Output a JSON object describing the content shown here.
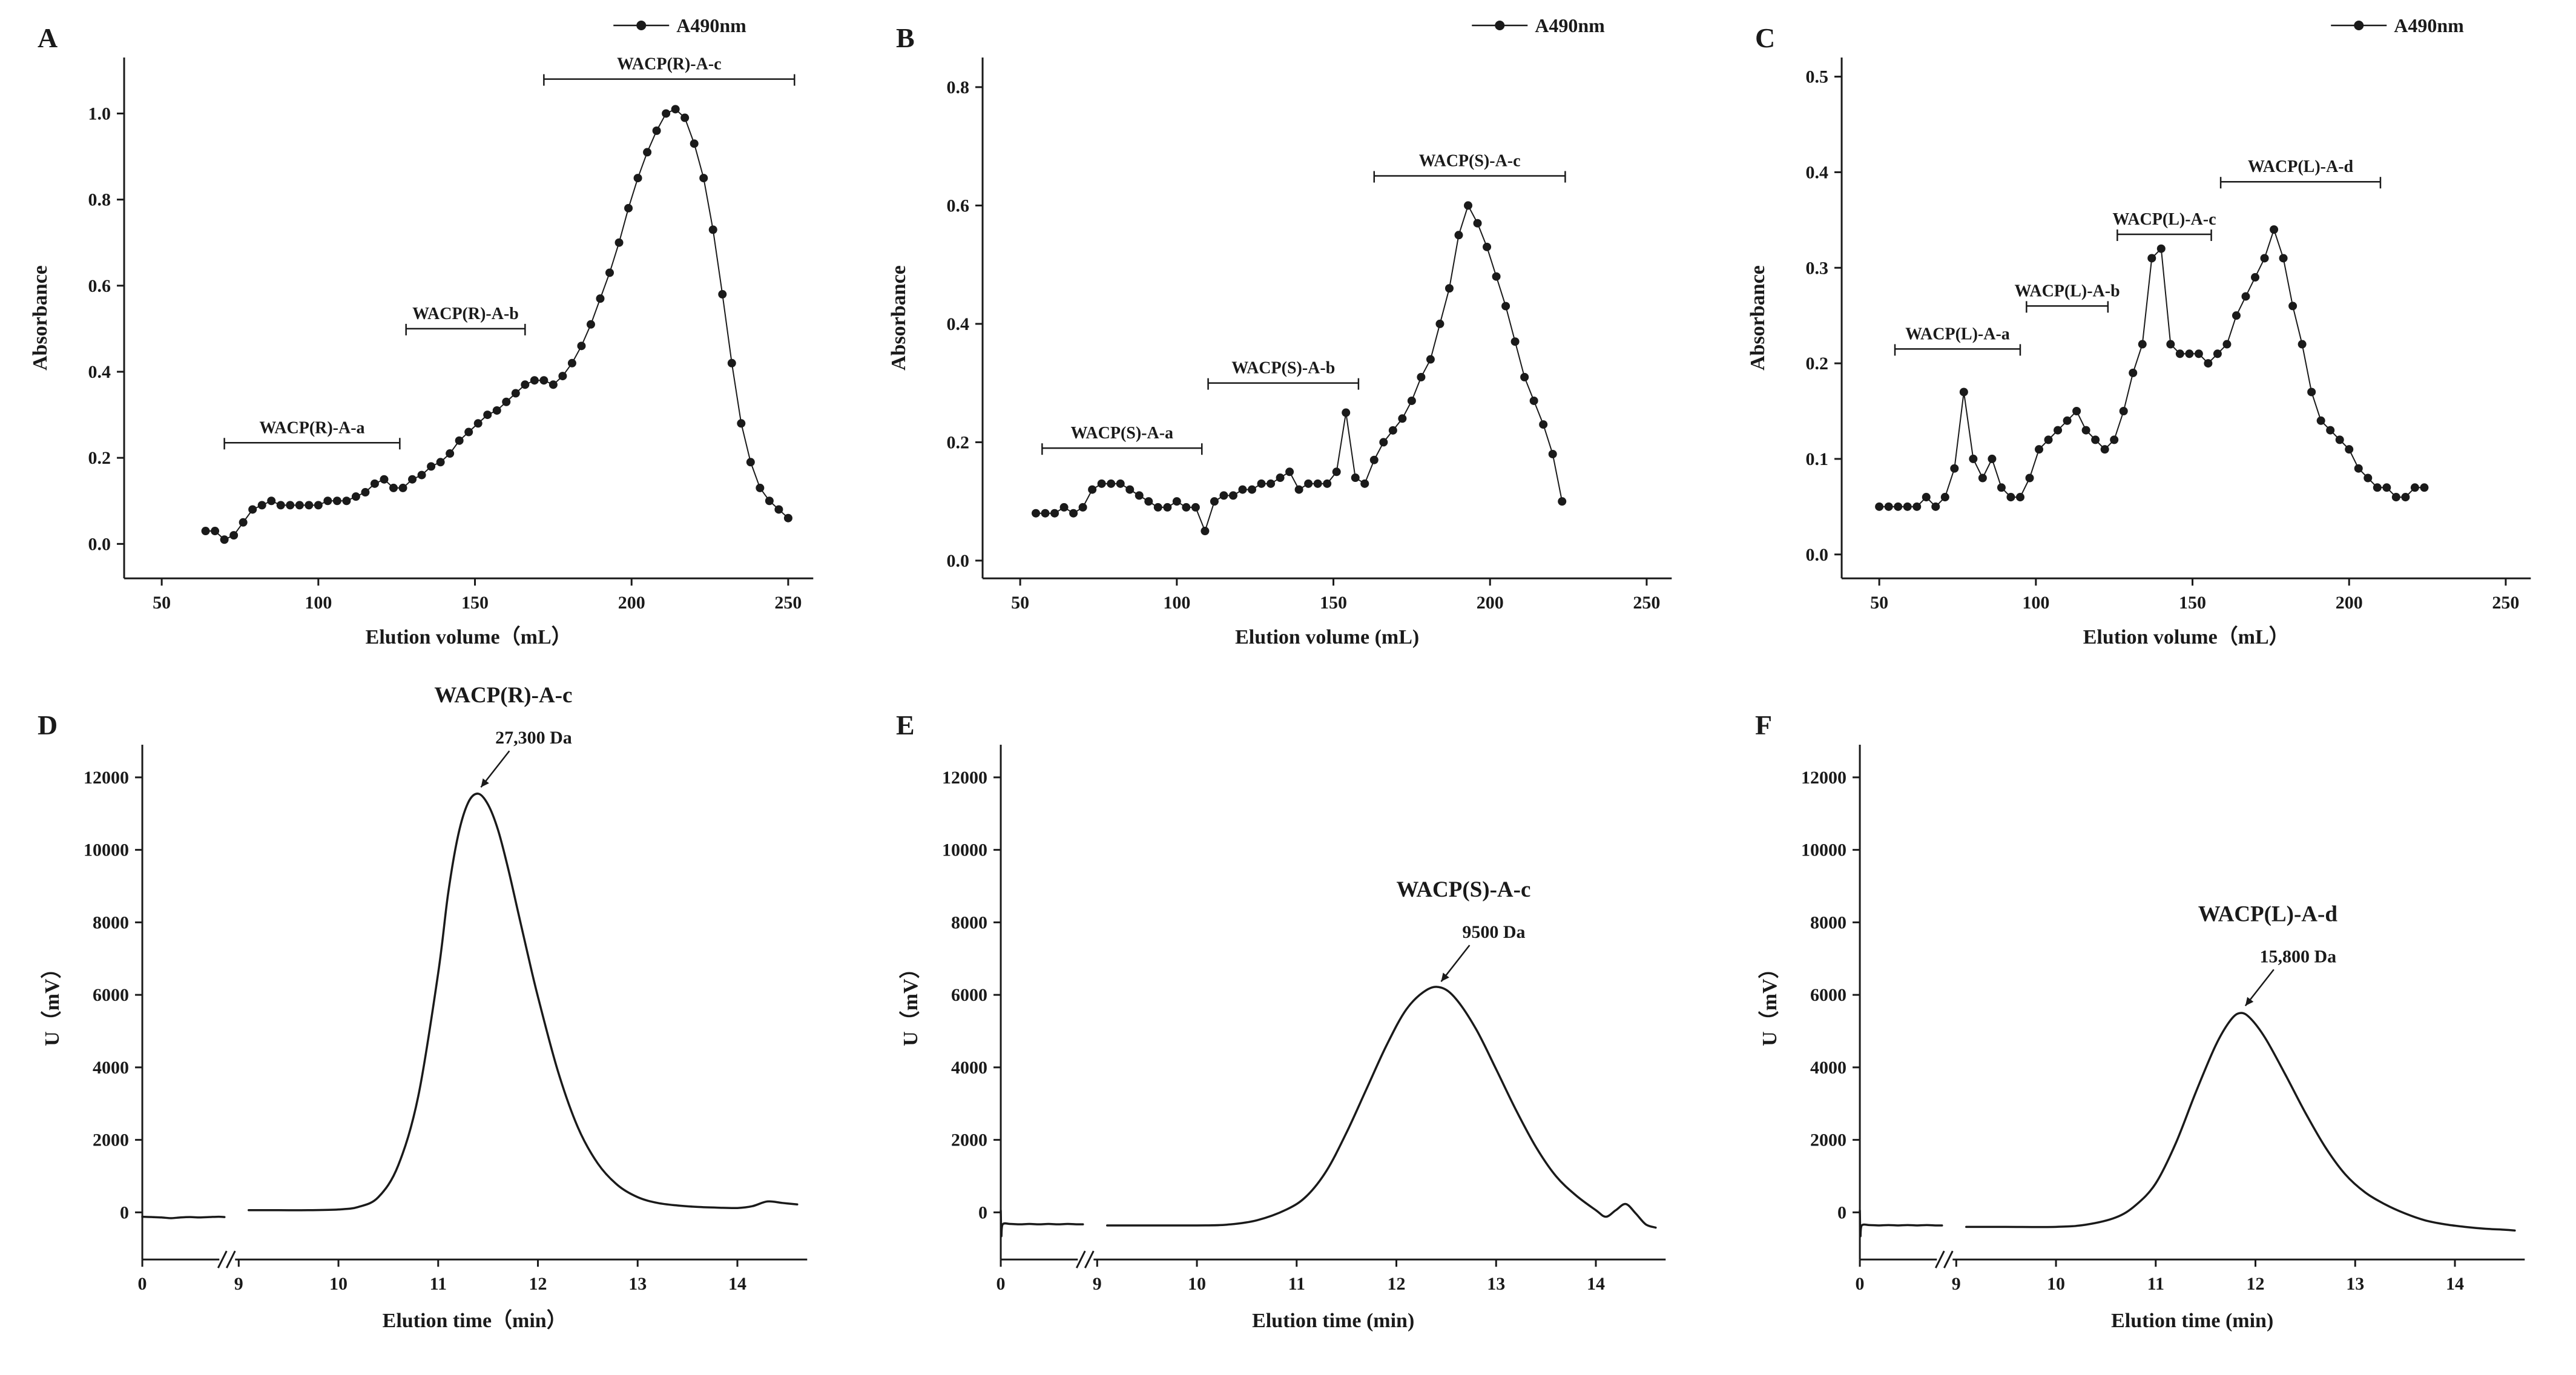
{
  "figure": {
    "background": "#ffffff",
    "ink": "#1a1a1a"
  },
  "chart_data": [
    {
      "panel_label": "A",
      "type": "scatter",
      "legend": "A490nm",
      "xlabel": "Elution volume（mL）",
      "ylabel": "Absorbance",
      "xlim": [
        38,
        258
      ],
      "ylim": [
        -0.08,
        1.13
      ],
      "xticks": [
        50,
        100,
        150,
        200,
        250
      ],
      "yticks": [
        0.0,
        0.2,
        0.4,
        0.6,
        0.8,
        1.0
      ],
      "ydecimals": 1,
      "x": [
        64,
        67,
        70,
        73,
        76,
        79,
        82,
        85,
        88,
        91,
        94,
        97,
        100,
        103,
        106,
        109,
        112,
        115,
        118,
        121,
        124,
        127,
        130,
        133,
        136,
        139,
        142,
        145,
        148,
        151,
        154,
        157,
        160,
        163,
        166,
        169,
        172,
        175,
        178,
        181,
        184,
        187,
        190,
        193,
        196,
        199,
        202,
        205,
        208,
        211,
        214,
        217,
        220,
        223,
        226,
        229,
        232,
        235,
        238,
        241,
        244,
        247,
        250
      ],
      "y": [
        0.03,
        0.03,
        0.01,
        0.02,
        0.05,
        0.08,
        0.09,
        0.1,
        0.09,
        0.09,
        0.09,
        0.09,
        0.09,
        0.1,
        0.1,
        0.1,
        0.11,
        0.12,
        0.14,
        0.15,
        0.13,
        0.13,
        0.15,
        0.16,
        0.18,
        0.19,
        0.21,
        0.24,
        0.26,
        0.28,
        0.3,
        0.31,
        0.33,
        0.35,
        0.37,
        0.38,
        0.38,
        0.37,
        0.39,
        0.42,
        0.46,
        0.51,
        0.57,
        0.63,
        0.7,
        0.78,
        0.85,
        0.91,
        0.96,
        1.0,
        1.01,
        0.99,
        0.93,
        0.85,
        0.73,
        0.58,
        0.42,
        0.28,
        0.19,
        0.13,
        0.1,
        0.08,
        0.06
      ],
      "brackets": [
        {
          "label": "WACP(R)-A-a",
          "x1": 70,
          "x2": 126,
          "y": 0.235
        },
        {
          "label": "WACP(R)-A-b",
          "x1": 128,
          "x2": 166,
          "y": 0.5
        },
        {
          "label": "WACP(R)-A-c",
          "x1": 172,
          "x2": 252,
          "y": 1.08
        }
      ]
    },
    {
      "panel_label": "B",
      "type": "scatter",
      "legend": "A490nm",
      "xlabel": "Elution volume (mL)",
      "ylabel": "Absorbance",
      "xlim": [
        38,
        258
      ],
      "ylim": [
        -0.03,
        0.85
      ],
      "xticks": [
        50,
        100,
        150,
        200,
        250
      ],
      "yticks": [
        0.0,
        0.2,
        0.4,
        0.6,
        0.8
      ],
      "ydecimals": 1,
      "x": [
        55,
        58,
        61,
        64,
        67,
        70,
        73,
        76,
        79,
        82,
        85,
        88,
        91,
        94,
        97,
        100,
        103,
        106,
        109,
        112,
        115,
        118,
        121,
        124,
        127,
        130,
        133,
        136,
        139,
        142,
        145,
        148,
        151,
        154,
        157,
        160,
        163,
        166,
        169,
        172,
        175,
        178,
        181,
        184,
        187,
        190,
        193,
        196,
        199,
        202,
        205,
        208,
        211,
        214,
        217,
        220,
        223
      ],
      "y": [
        0.08,
        0.08,
        0.08,
        0.09,
        0.08,
        0.09,
        0.12,
        0.13,
        0.13,
        0.13,
        0.12,
        0.11,
        0.1,
        0.09,
        0.09,
        0.1,
        0.09,
        0.09,
        0.05,
        0.1,
        0.11,
        0.11,
        0.12,
        0.12,
        0.13,
        0.13,
        0.14,
        0.15,
        0.12,
        0.13,
        0.13,
        0.13,
        0.15,
        0.25,
        0.14,
        0.13,
        0.17,
        0.2,
        0.22,
        0.24,
        0.27,
        0.31,
        0.34,
        0.4,
        0.46,
        0.55,
        0.6,
        0.57,
        0.53,
        0.48,
        0.43,
        0.37,
        0.31,
        0.27,
        0.23,
        0.18,
        0.1
      ],
      "brackets": [
        {
          "label": "WACP(S)-A-a",
          "x1": 57,
          "x2": 108,
          "y": 0.19
        },
        {
          "label": "WACP(S)-A-b",
          "x1": 110,
          "x2": 158,
          "y": 0.3
        },
        {
          "label": "WACP(S)-A-c",
          "x1": 163,
          "x2": 224,
          "y": 0.65
        }
      ]
    },
    {
      "panel_label": "C",
      "type": "scatter",
      "legend": "A490nm",
      "xlabel": "Elution volume（mL）",
      "ylabel": "Absorbance",
      "xlim": [
        38,
        258
      ],
      "ylim": [
        -0.025,
        0.52
      ],
      "xticks": [
        50,
        100,
        150,
        200,
        250
      ],
      "yticks": [
        0.0,
        0.1,
        0.2,
        0.3,
        0.4,
        0.5
      ],
      "ydecimals": 1,
      "x": [
        50,
        53,
        56,
        59,
        62,
        65,
        68,
        71,
        74,
        77,
        80,
        83,
        86,
        89,
        92,
        95,
        98,
        101,
        104,
        107,
        110,
        113,
        116,
        119,
        122,
        125,
        128,
        131,
        134,
        137,
        140,
        143,
        146,
        149,
        152,
        155,
        158,
        161,
        164,
        167,
        170,
        173,
        176,
        179,
        182,
        185,
        188,
        191,
        194,
        197,
        200,
        203,
        206,
        209,
        212,
        215,
        218,
        221,
        224
      ],
      "y": [
        0.05,
        0.05,
        0.05,
        0.05,
        0.05,
        0.06,
        0.05,
        0.06,
        0.09,
        0.17,
        0.1,
        0.08,
        0.1,
        0.07,
        0.06,
        0.06,
        0.08,
        0.11,
        0.12,
        0.13,
        0.14,
        0.15,
        0.13,
        0.12,
        0.11,
        0.12,
        0.15,
        0.19,
        0.22,
        0.31,
        0.32,
        0.22,
        0.21,
        0.21,
        0.21,
        0.2,
        0.21,
        0.22,
        0.25,
        0.27,
        0.29,
        0.31,
        0.34,
        0.31,
        0.26,
        0.22,
        0.17,
        0.14,
        0.13,
        0.12,
        0.11,
        0.09,
        0.08,
        0.07,
        0.07,
        0.06,
        0.06,
        0.07,
        0.07
      ],
      "brackets": [
        {
          "label": "WACP(L)-A-a",
          "x1": 55,
          "x2": 95,
          "y": 0.215
        },
        {
          "label": "WACP(L)-A-b",
          "x1": 97,
          "x2": 123,
          "y": 0.26
        },
        {
          "label": "WACP(L)-A-c",
          "x1": 126,
          "x2": 156,
          "y": 0.335
        },
        {
          "label": "WACP(L)-A-d",
          "x1": 159,
          "x2": 210,
          "y": 0.39
        }
      ]
    },
    {
      "panel_label": "D",
      "type": "line_broken_axis",
      "xlabel": "Elution time（min）",
      "ylabel": "U（mV）",
      "ylim": [
        -1300,
        12900
      ],
      "yticks": [
        0,
        2000,
        4000,
        6000,
        8000,
        10000,
        12000
      ],
      "xticks": [
        0,
        9,
        10,
        11,
        12,
        13,
        14
      ],
      "x_break_end": 9,
      "x_max": 14.7,
      "pre_break": [
        [
          0,
          -120
        ],
        [
          1,
          -130
        ],
        [
          2,
          -140
        ],
        [
          3,
          -160
        ],
        [
          4,
          -140
        ],
        [
          5,
          -130
        ],
        [
          6,
          -140
        ],
        [
          7,
          -130
        ],
        [
          8,
          -120
        ],
        [
          8.6,
          -130
        ]
      ],
      "post_break": [
        [
          9.1,
          60
        ],
        [
          9.4,
          60
        ],
        [
          9.7,
          60
        ],
        [
          10,
          80
        ],
        [
          10.2,
          150
        ],
        [
          10.4,
          420
        ],
        [
          10.6,
          1300
        ],
        [
          10.8,
          3200
        ],
        [
          11,
          6600
        ],
        [
          11.1,
          8800
        ],
        [
          11.2,
          10400
        ],
        [
          11.3,
          11300
        ],
        [
          11.4,
          11550
        ],
        [
          11.5,
          11250
        ],
        [
          11.6,
          10550
        ],
        [
          11.7,
          9500
        ],
        [
          11.8,
          8300
        ],
        [
          11.9,
          7100
        ],
        [
          12,
          5950
        ],
        [
          12.2,
          3900
        ],
        [
          12.4,
          2350
        ],
        [
          12.6,
          1350
        ],
        [
          12.8,
          750
        ],
        [
          13,
          420
        ],
        [
          13.2,
          260
        ],
        [
          13.4,
          190
        ],
        [
          13.6,
          150
        ],
        [
          13.8,
          130
        ],
        [
          14,
          120
        ],
        [
          14.15,
          170
        ],
        [
          14.3,
          300
        ],
        [
          14.45,
          260
        ],
        [
          14.6,
          220
        ]
      ],
      "peak": {
        "title": "WACP(R)-A-c",
        "mass": "27,300 Da",
        "x": 11.38,
        "y": 11560
      }
    },
    {
      "panel_label": "E",
      "type": "line_broken_axis",
      "xlabel": "Elution time (min)",
      "ylabel": "U（mV）",
      "ylim": [
        -1300,
        12900
      ],
      "yticks": [
        0,
        2000,
        4000,
        6000,
        8000,
        10000,
        12000
      ],
      "xticks": [
        0,
        9,
        10,
        11,
        12,
        13,
        14
      ],
      "x_break_end": 9,
      "x_max": 14.7,
      "pre_break": [
        [
          0,
          50
        ],
        [
          0.06,
          -650
        ],
        [
          0.2,
          -330
        ],
        [
          1,
          -320
        ],
        [
          2,
          -330
        ],
        [
          3,
          -320
        ],
        [
          4,
          -330
        ],
        [
          5,
          -320
        ],
        [
          6,
          -330
        ],
        [
          7,
          -320
        ],
        [
          8,
          -330
        ],
        [
          8.6,
          -330
        ]
      ],
      "post_break": [
        [
          9.1,
          -360
        ],
        [
          9.5,
          -360
        ],
        [
          10,
          -360
        ],
        [
          10.3,
          -340
        ],
        [
          10.6,
          -220
        ],
        [
          10.9,
          80
        ],
        [
          11.1,
          450
        ],
        [
          11.3,
          1150
        ],
        [
          11.5,
          2200
        ],
        [
          11.7,
          3400
        ],
        [
          11.9,
          4600
        ],
        [
          12.1,
          5600
        ],
        [
          12.3,
          6130
        ],
        [
          12.45,
          6200
        ],
        [
          12.6,
          5880
        ],
        [
          12.8,
          5050
        ],
        [
          13,
          3950
        ],
        [
          13.2,
          2820
        ],
        [
          13.4,
          1800
        ],
        [
          13.6,
          1000
        ],
        [
          13.8,
          470
        ],
        [
          14,
          60
        ],
        [
          14.1,
          -120
        ],
        [
          14.2,
          60
        ],
        [
          14.3,
          230
        ],
        [
          14.4,
          -30
        ],
        [
          14.5,
          -330
        ],
        [
          14.6,
          -420
        ]
      ],
      "peak": {
        "title": "WACP(S)-A-c",
        "mass": "9500 Da",
        "x": 12.4,
        "y": 6200
      }
    },
    {
      "panel_label": "F",
      "type": "line_broken_axis",
      "xlabel": "Elution time (min)",
      "ylabel": "U（mV）",
      "ylim": [
        -1300,
        12900
      ],
      "yticks": [
        0,
        2000,
        4000,
        6000,
        8000,
        10000,
        12000
      ],
      "xticks": [
        0,
        9,
        10,
        11,
        12,
        13,
        14
      ],
      "x_break_end": 9,
      "x_max": 14.7,
      "pre_break": [
        [
          0,
          50
        ],
        [
          0.06,
          -650
        ],
        [
          0.2,
          -360
        ],
        [
          1,
          -350
        ],
        [
          2,
          -360
        ],
        [
          3,
          -350
        ],
        [
          4,
          -360
        ],
        [
          5,
          -350
        ],
        [
          6,
          -360
        ],
        [
          7,
          -350
        ],
        [
          8,
          -360
        ],
        [
          8.6,
          -360
        ]
      ],
      "post_break": [
        [
          9.1,
          -400
        ],
        [
          9.5,
          -400
        ],
        [
          10,
          -400
        ],
        [
          10.3,
          -340
        ],
        [
          10.6,
          -140
        ],
        [
          10.8,
          200
        ],
        [
          11,
          800
        ],
        [
          11.2,
          1900
        ],
        [
          11.4,
          3300
        ],
        [
          11.6,
          4600
        ],
        [
          11.75,
          5300
        ],
        [
          11.85,
          5500
        ],
        [
          11.95,
          5350
        ],
        [
          12.1,
          4800
        ],
        [
          12.3,
          3800
        ],
        [
          12.5,
          2750
        ],
        [
          12.7,
          1800
        ],
        [
          12.9,
          1050
        ],
        [
          13.1,
          550
        ],
        [
          13.3,
          220
        ],
        [
          13.5,
          -30
        ],
        [
          13.7,
          -220
        ],
        [
          13.9,
          -330
        ],
        [
          14.1,
          -400
        ],
        [
          14.3,
          -450
        ],
        [
          14.5,
          -480
        ],
        [
          14.6,
          -500
        ]
      ],
      "peak": {
        "title": "WACP(L)-A-d",
        "mass": "15,800 Da",
        "x": 11.85,
        "y": 5530
      }
    }
  ]
}
